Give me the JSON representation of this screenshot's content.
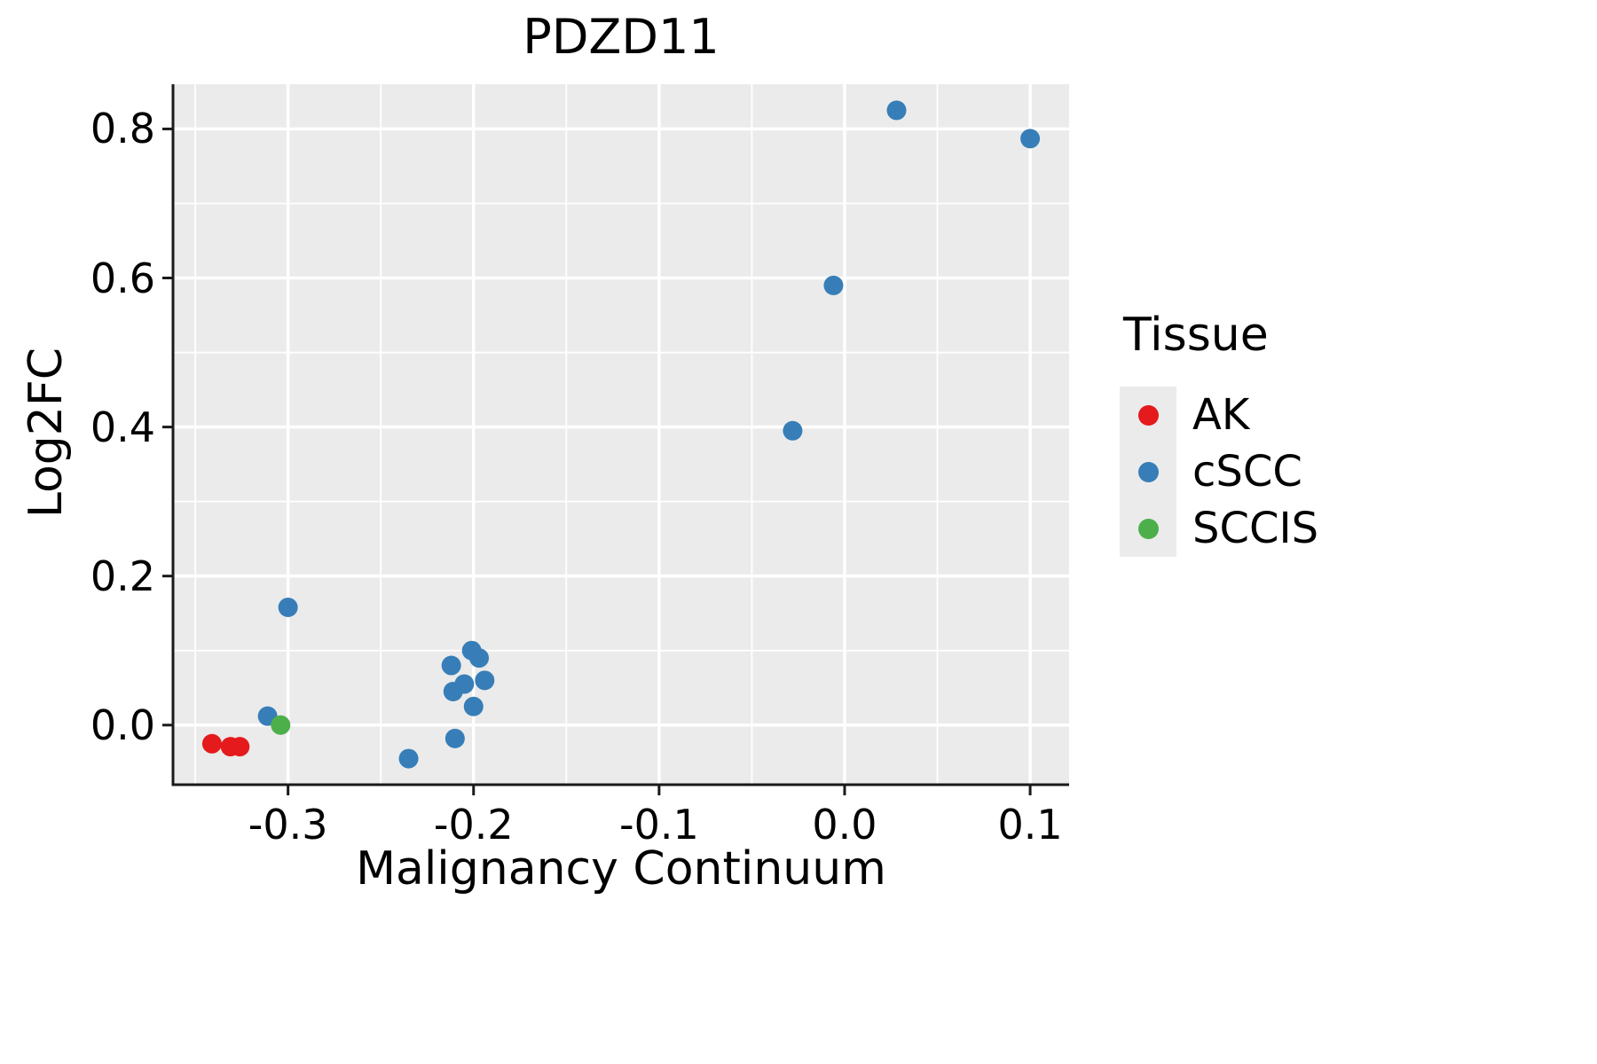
{
  "title": "PDZD11",
  "chart_data": {
    "type": "scatter",
    "title": "PDZD11",
    "xlabel": "Malignancy Continuum",
    "ylabel": "Log2FC",
    "xlim": [
      -0.362,
      0.121
    ],
    "ylim": [
      -0.08,
      0.86
    ],
    "x_ticks": [
      -0.3,
      -0.2,
      -0.1,
      0.0,
      0.1
    ],
    "y_ticks": [
      0.0,
      0.2,
      0.4,
      0.6,
      0.8
    ],
    "x_minor_step": 0.1,
    "y_minor_step": 0.2,
    "grid": true,
    "panel_bg": "#EBEBEB",
    "grid_color": "#FFFFFF",
    "axis_color": "#1a1a1a",
    "point_radius": 11,
    "legend_title": "Tissue",
    "legend_position": "right",
    "series": [
      {
        "name": "AK",
        "color": "#E41A1C",
        "points": [
          [
            -0.341,
            -0.025
          ],
          [
            -0.331,
            -0.029
          ],
          [
            -0.326,
            -0.029
          ]
        ]
      },
      {
        "name": "cSCC",
        "color": "#377EB8",
        "points": [
          [
            -0.311,
            0.012
          ],
          [
            -0.3,
            0.158
          ],
          [
            -0.235,
            -0.045
          ],
          [
            -0.212,
            0.08
          ],
          [
            -0.211,
            0.045
          ],
          [
            -0.21,
            -0.018
          ],
          [
            -0.205,
            0.055
          ],
          [
            -0.201,
            0.1
          ],
          [
            -0.2,
            0.025
          ],
          [
            -0.197,
            0.09
          ],
          [
            -0.194,
            0.06
          ],
          [
            -0.028,
            0.395
          ],
          [
            -0.006,
            0.59
          ],
          [
            0.028,
            0.825
          ],
          [
            0.1,
            0.787
          ]
        ]
      },
      {
        "name": "SCCIS",
        "color": "#4DAF4A",
        "points": [
          [
            -0.304,
            0.0
          ]
        ]
      }
    ]
  }
}
